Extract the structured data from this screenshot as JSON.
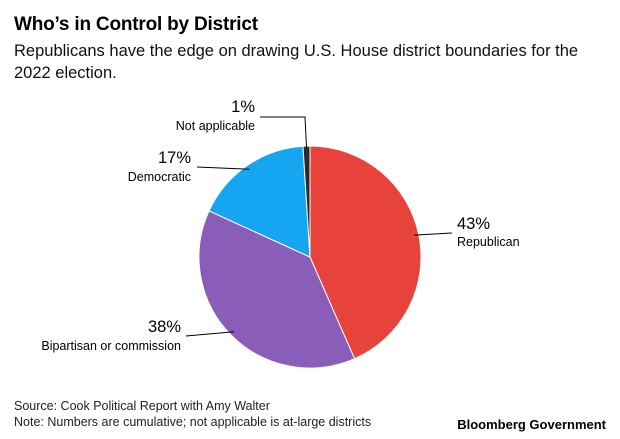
{
  "chart_data": {
    "type": "pie",
    "title": "Who’s in Control by District",
    "subtitle": "Republicans have the edge on drawing U.S. House district boundaries for the 2022 election.",
    "slices": [
      {
        "name": "Republican",
        "value": 43,
        "value_label": "43%",
        "color": "#e8433a"
      },
      {
        "name": "Bipartisan or commission",
        "value": 38,
        "value_label": "38%",
        "color": "#8a5eb8"
      },
      {
        "name": "Democratic",
        "value": 17,
        "value_label": "17%",
        "color": "#16a5f0"
      },
      {
        "name": "Not applicable",
        "value": 1,
        "value_label": "1%",
        "color": "#2a2a2a"
      }
    ]
  },
  "footer": {
    "source": "Source: Cook Political Report with Amy Walter",
    "note": "Note: Numbers are cumulative; not applicable is at-large districts",
    "brand": "Bloomberg Government"
  }
}
